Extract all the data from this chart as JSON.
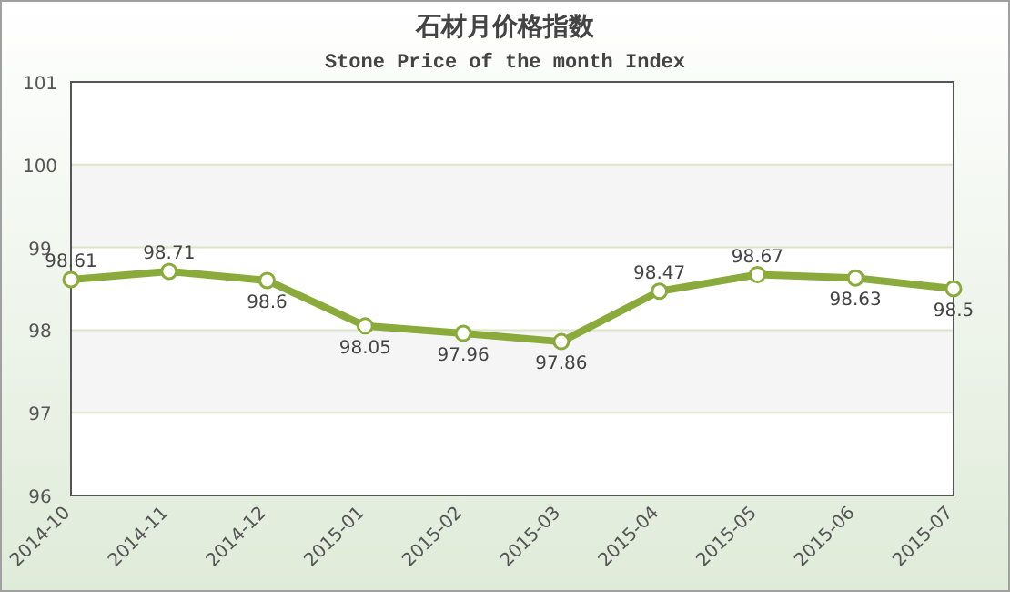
{
  "chart_data": {
    "type": "line",
    "title": "石材月价格指数",
    "subtitle": "Stone Price of the month Index",
    "categories": [
      "2014-10",
      "2014-11",
      "2014-12",
      "2015-01",
      "2015-02",
      "2015-03",
      "2015-04",
      "2015-05",
      "2015-06",
      "2015-07"
    ],
    "series": [
      {
        "color": "#8aab3c",
        "values": [
          98.61,
          98.71,
          98.6,
          98.05,
          97.96,
          97.86,
          98.47,
          98.67,
          98.63,
          98.5
        ]
      }
    ],
    "ylim": [
      96,
      101
    ],
    "yticks": [
      96,
      97,
      98,
      99,
      100,
      101
    ],
    "grid": "y",
    "marker": "circle",
    "line_style": "solid",
    "data_labels": true
  }
}
